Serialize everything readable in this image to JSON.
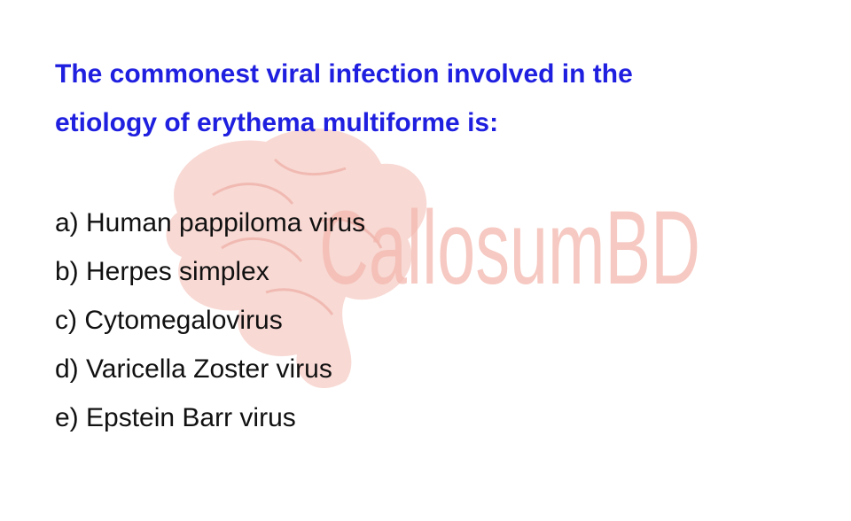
{
  "colors": {
    "question": "#1f1fe0",
    "options": "#111111",
    "watermark": "#f5c9c2"
  },
  "watermark": {
    "text": "CallosumBD"
  },
  "question": {
    "line1": "The commonest viral infection involved in the",
    "line2": "etiology of erythema multiforme is:"
  },
  "options": [
    "a) Human pappiloma virus",
    "b) Herpes simplex",
    "c) Cytomegalovirus",
    "d) Varicella Zoster virus",
    "e) Epstein Barr virus"
  ]
}
